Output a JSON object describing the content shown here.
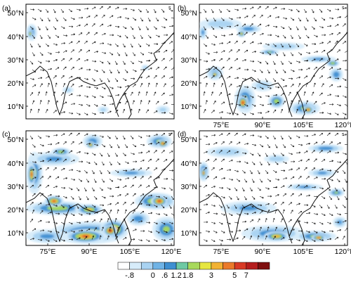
{
  "panels": [
    {
      "label": "(a)",
      "scale_mark": "s",
      "x_ticks": [],
      "y_ticks": [
        "50°N",
        "40°N",
        "30°N",
        "20°N",
        "10°N"
      ],
      "intensity": 0.15
    },
    {
      "label": "(b)",
      "scale_mark": "s",
      "x_ticks": [
        "75°E",
        "90°E",
        "105°E",
        "120°E"
      ],
      "y_ticks": [
        "50°N",
        "40°N",
        "30°N",
        "20°N",
        "10°N"
      ],
      "intensity": 0.55
    },
    {
      "label": "(c)",
      "scale_mark": "s",
      "x_ticks": [
        "75°E",
        "90°E",
        "105°E",
        "120°E"
      ],
      "y_ticks": [
        "50°N",
        "40°N",
        "30°N",
        "20°N",
        "10°N"
      ],
      "intensity": 1.0
    },
    {
      "label": "(d)",
      "scale_mark": "s",
      "x_ticks": [
        "75°E",
        "90°E",
        "105°E",
        "120°E"
      ],
      "y_ticks": [
        "50°N",
        "40°N",
        "30°N",
        "20°N",
        "10°N"
      ],
      "intensity": 0.5
    }
  ],
  "colorbar": {
    "labels": [
      "-.8",
      "0",
      ".6",
      "1.2",
      "1.8",
      "3",
      "5",
      "7"
    ],
    "colors": [
      "#ffffff",
      "#d7ecfa",
      "#a9d3f2",
      "#6fb3e6",
      "#3e8fd1",
      "#6ec9a3",
      "#a8d95c",
      "#e6e640",
      "#f2b233",
      "#eb7a2a",
      "#d93a25",
      "#b51d1d",
      "#7f0f0f"
    ]
  },
  "coast_color": "#111111",
  "arrow_color": "#111111"
}
